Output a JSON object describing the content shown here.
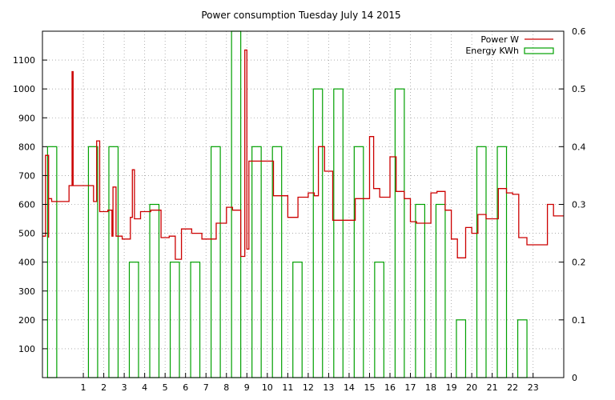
{
  "chart_data": {
    "type": "line",
    "title": "Power consumption Tuesday July 14 2015",
    "xlabel": "",
    "ylabel": "",
    "y2label": "",
    "xlim": [
      -1,
      24.5
    ],
    "ylim": [
      0,
      1200
    ],
    "y2lim": [
      0,
      0.6
    ],
    "x_ticks": [
      1,
      2,
      3,
      4,
      5,
      6,
      7,
      8,
      9,
      10,
      11,
      12,
      13,
      14,
      15,
      16,
      17,
      18,
      19,
      20,
      21,
      22,
      23
    ],
    "y_ticks": [
      100,
      200,
      300,
      400,
      500,
      600,
      700,
      800,
      900,
      1000,
      1100
    ],
    "y2_ticks": [
      0,
      0.1,
      0.2,
      0.3,
      0.4,
      0.5,
      0.6
    ],
    "grid": true,
    "legend_position": "top-right",
    "colors": {
      "power": "#cc0000",
      "energy": "#00a000",
      "grid": "#a0a0a0"
    },
    "series": [
      {
        "name": "Power W",
        "axis": "left",
        "style": "steps",
        "x": [
          -1,
          -0.85,
          -0.7,
          -0.7,
          -0.55,
          0,
          0.3,
          0.3,
          0.45,
          0.45,
          0.5,
          1.0,
          1.5,
          1.65,
          1.65,
          1.8,
          2.2,
          2.4,
          2.45,
          2.6,
          2.9,
          3.3,
          3.4,
          3.5,
          3.8,
          4.3,
          4.8,
          5.2,
          5.5,
          5.8,
          6.3,
          6.8,
          7.5,
          8.0,
          8.3,
          8.7,
          8.8,
          8.9,
          9.0,
          9.1,
          10.0,
          10.3,
          10.7,
          11.0,
          11.5,
          11.8,
          12.0,
          12.3,
          12.5,
          12.8,
          13.2,
          13.5,
          14.0,
          14.3,
          15.0,
          15.2,
          15.5,
          16.0,
          16.3,
          16.7,
          17.0,
          17.3,
          17.7,
          18.0,
          18.3,
          18.7,
          19.0,
          19.3,
          19.7,
          20.0,
          20.3,
          20.7,
          21.0,
          21.3,
          21.7,
          22.0,
          22.3,
          22.7,
          23.0,
          23.3,
          23.7,
          24.0,
          24.5
        ],
        "values": [
          490,
          770,
          485,
          620,
          610,
          610,
          665,
          665,
          665,
          1060,
          665,
          665,
          610,
          610,
          820,
          575,
          580,
          490,
          660,
          490,
          480,
          555,
          720,
          550,
          575,
          580,
          485,
          490,
          410,
          515,
          500,
          480,
          535,
          590,
          580,
          420,
          420,
          1135,
          445,
          750,
          750,
          630,
          630,
          555,
          625,
          625,
          640,
          630,
          800,
          715,
          545,
          545,
          545,
          620,
          835,
          655,
          625,
          765,
          645,
          620,
          540,
          535,
          535,
          640,
          645,
          580,
          480,
          415,
          520,
          500,
          565,
          550,
          550,
          655,
          640,
          635,
          485,
          460,
          460,
          460,
          600,
          560,
          560
        ]
      },
      {
        "name": "Energy KWh",
        "axis": "right",
        "style": "boxes",
        "x": [
          0,
          1,
          2,
          3,
          4,
          5,
          6,
          7,
          8,
          9,
          10,
          11,
          12,
          13,
          14,
          15,
          16,
          17,
          18,
          19,
          20,
          21,
          22,
          23
        ],
        "values": [
          0.4,
          0,
          0.4,
          0.4,
          0.2,
          0.3,
          0.2,
          0.2,
          0.4,
          0.6,
          0.4,
          0.4,
          0.2,
          0.5,
          0.5,
          0.4,
          0.2,
          0.5,
          0.3,
          0.3,
          0.1,
          0.4,
          0.4,
          0.1
        ]
      }
    ]
  }
}
